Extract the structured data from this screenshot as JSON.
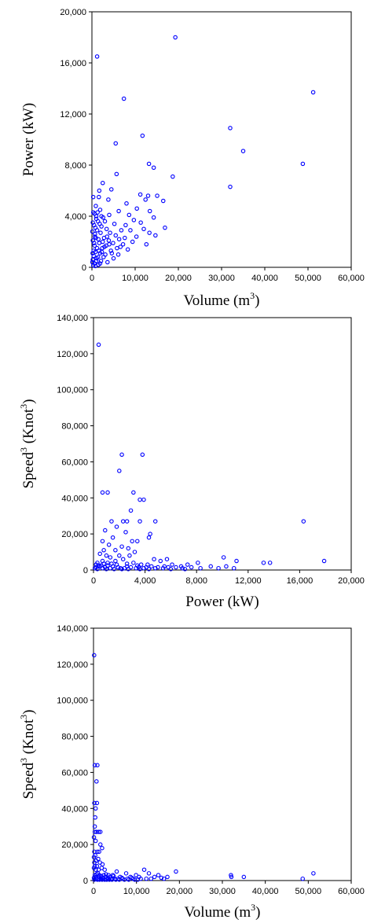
{
  "chart_data": [
    {
      "type": "scatter",
      "xlabel": "Volume (m3)",
      "xlabel_parts": {
        "base": "Volume (m",
        "sup": "3",
        "close": ")"
      },
      "ylabel": "Power (kW)",
      "xlim": [
        0,
        60000
      ],
      "ylim": [
        0,
        20000
      ],
      "xticks": [
        0,
        10000,
        20000,
        30000,
        40000,
        50000,
        60000
      ],
      "xtick_labels": [
        "0",
        "10,000",
        "20,000",
        "30,000",
        "40,000",
        "50,000",
        "60,000"
      ],
      "yticks": [
        0,
        4000,
        8000,
        12000,
        16000,
        20000
      ],
      "ytick_labels": [
        "0",
        "4,000",
        "8,000",
        "12,000",
        "16,000",
        "20,000"
      ],
      "grid": false,
      "marker_color": "#0000ff",
      "points": [
        [
          1200,
          16500
        ],
        [
          19300,
          18000
        ],
        [
          7400,
          13200
        ],
        [
          51200,
          13700
        ],
        [
          11700,
          10300
        ],
        [
          32000,
          10900
        ],
        [
          35000,
          9100
        ],
        [
          5500,
          9700
        ],
        [
          13200,
          8100
        ],
        [
          14300,
          7800
        ],
        [
          48800,
          8100
        ],
        [
          18700,
          7100
        ],
        [
          5700,
          7300
        ],
        [
          32000,
          6300
        ],
        [
          2500,
          6600
        ],
        [
          1700,
          6000
        ],
        [
          4500,
          6100
        ],
        [
          13000,
          5600
        ],
        [
          11200,
          5700
        ],
        [
          15100,
          5600
        ],
        [
          12400,
          5300
        ],
        [
          16500,
          5200
        ],
        [
          3800,
          5300
        ],
        [
          300,
          5500
        ],
        [
          1600,
          5500
        ],
        [
          8000,
          5000
        ],
        [
          900,
          4800
        ],
        [
          10400,
          4600
        ],
        [
          6200,
          4400
        ],
        [
          1900,
          4500
        ],
        [
          13400,
          4400
        ],
        [
          4000,
          4100
        ],
        [
          8600,
          4100
        ],
        [
          14300,
          3900
        ],
        [
          9700,
          3700
        ],
        [
          1000,
          3800
        ],
        [
          3000,
          3600
        ],
        [
          11300,
          3500
        ],
        [
          5200,
          3400
        ],
        [
          7800,
          3300
        ],
        [
          16900,
          3100
        ],
        [
          2200,
          3200
        ],
        [
          12000,
          3000
        ],
        [
          6800,
          2900
        ],
        [
          8900,
          2900
        ],
        [
          13300,
          2700
        ],
        [
          4200,
          2700
        ],
        [
          14700,
          2500
        ],
        [
          700,
          2600
        ],
        [
          10300,
          2400
        ],
        [
          3500,
          2400
        ],
        [
          6300,
          2200
        ],
        [
          1500,
          2200
        ],
        [
          9400,
          2000
        ],
        [
          2500,
          2000
        ],
        [
          4900,
          1900
        ],
        [
          12600,
          1800
        ],
        [
          7200,
          1800
        ],
        [
          500,
          1900
        ],
        [
          3300,
          1700
        ],
        [
          1200,
          1500
        ],
        [
          5800,
          1500
        ],
        [
          2400,
          1500
        ],
        [
          8300,
          1400
        ],
        [
          4400,
          1300
        ],
        [
          800,
          1200
        ],
        [
          1900,
          1100
        ],
        [
          3100,
          1000
        ],
        [
          6100,
          1000
        ],
        [
          400,
          900
        ],
        [
          1400,
          800
        ],
        [
          2700,
          800
        ],
        [
          5000,
          700
        ],
        [
          200,
          600
        ],
        [
          1000,
          500
        ],
        [
          2100,
          500
        ],
        [
          3600,
          400
        ],
        [
          600,
          300
        ],
        [
          1500,
          200
        ],
        [
          300,
          150
        ],
        [
          800,
          3100
        ],
        [
          1200,
          2900
        ],
        [
          2000,
          2700
        ],
        [
          2800,
          2300
        ],
        [
          3900,
          2100
        ],
        [
          1700,
          1900
        ],
        [
          600,
          1700
        ],
        [
          2300,
          1200
        ],
        [
          4600,
          1100
        ],
        [
          900,
          2300
        ],
        [
          200,
          2100
        ],
        [
          1800,
          3400
        ],
        [
          3400,
          3000
        ],
        [
          600,
          4200
        ],
        [
          2600,
          3900
        ],
        [
          1300,
          4300
        ],
        [
          200,
          3500
        ],
        [
          1000,
          4000
        ],
        [
          100,
          2800
        ],
        [
          1600,
          1300
        ],
        [
          2900,
          1600
        ],
        [
          400,
          1300
        ],
        [
          1100,
          700
        ],
        [
          100,
          400
        ],
        [
          5500,
          2500
        ],
        [
          7600,
          2300
        ],
        [
          6600,
          1600
        ],
        [
          4000,
          1800
        ],
        [
          700,
          2400
        ],
        [
          1400,
          3600
        ],
        [
          2200,
          4000
        ],
        [
          300,
          4300
        ],
        [
          800,
          100
        ],
        [
          1900,
          300
        ],
        [
          150,
          1100
        ],
        [
          500,
          3300
        ]
      ]
    },
    {
      "type": "scatter",
      "xlabel": "Power (kW)",
      "ylabel": "Speed3 (Knot3)",
      "ylabel_parts": {
        "a": "Speed",
        "sup1": "3",
        "b": " (Knot",
        "sup2": "3",
        "close": ")"
      },
      "xlim": [
        0,
        20000
      ],
      "ylim": [
        0,
        140000
      ],
      "xticks": [
        0,
        4000,
        8000,
        12000,
        16000,
        20000
      ],
      "xtick_labels": [
        "0",
        "4,000",
        "8,000",
        "12,000",
        "16,000",
        "20,000"
      ],
      "yticks": [
        0,
        20000,
        40000,
        60000,
        80000,
        100000,
        120000,
        140000
      ],
      "ytick_labels": [
        "0",
        "20,000",
        "40,000",
        "60,000",
        "80,000",
        "100,000",
        "120,000",
        "140,000"
      ],
      "grid": false,
      "marker_color": "#0000ff",
      "points": [
        [
          400,
          125000
        ],
        [
          2200,
          64000
        ],
        [
          3800,
          64000
        ],
        [
          2000,
          55000
        ],
        [
          700,
          43000
        ],
        [
          1100,
          43000
        ],
        [
          3100,
          43000
        ],
        [
          3600,
          39000
        ],
        [
          3900,
          39000
        ],
        [
          2900,
          33000
        ],
        [
          3600,
          27000
        ],
        [
          16300,
          27000
        ],
        [
          1400,
          27000
        ],
        [
          2300,
          27000
        ],
        [
          2600,
          27000
        ],
        [
          4800,
          27000
        ],
        [
          1800,
          24000
        ],
        [
          2500,
          21000
        ],
        [
          900,
          22000
        ],
        [
          4400,
          20000
        ],
        [
          4300,
          18000
        ],
        [
          1500,
          18000
        ],
        [
          3000,
          16000
        ],
        [
          3400,
          16000
        ],
        [
          700,
          16000
        ],
        [
          1200,
          14000
        ],
        [
          2200,
          13000
        ],
        [
          2700,
          12000
        ],
        [
          800,
          11000
        ],
        [
          1700,
          11000
        ],
        [
          3200,
          10000
        ],
        [
          500,
          9000
        ],
        [
          1000,
          8000
        ],
        [
          2000,
          8000
        ],
        [
          2800,
          8000
        ],
        [
          1300,
          7000
        ],
        [
          10100,
          7000
        ],
        [
          5700,
          6000
        ],
        [
          5200,
          5000
        ],
        [
          11100,
          5000
        ],
        [
          13200,
          4000
        ],
        [
          13700,
          4000
        ],
        [
          17900,
          5000
        ],
        [
          8100,
          4000
        ],
        [
          2300,
          6000
        ],
        [
          4700,
          6000
        ],
        [
          1700,
          5000
        ],
        [
          700,
          5000
        ],
        [
          300,
          4000
        ],
        [
          1100,
          4000
        ],
        [
          3100,
          4000
        ],
        [
          3700,
          3000
        ],
        [
          6100,
          3000
        ],
        [
          7300,
          3000
        ],
        [
          10300,
          2000
        ],
        [
          5500,
          2000
        ],
        [
          9100,
          2000
        ],
        [
          6800,
          2000
        ],
        [
          4500,
          2000
        ],
        [
          2600,
          2000
        ],
        [
          1500,
          2000
        ],
        [
          500,
          2000
        ],
        [
          200,
          1500
        ],
        [
          900,
          1500
        ],
        [
          1900,
          1500
        ],
        [
          2900,
          1500
        ],
        [
          3500,
          1500
        ],
        [
          4100,
          1500
        ],
        [
          5000,
          1500
        ],
        [
          5800,
          1500
        ],
        [
          6400,
          1500
        ],
        [
          7600,
          1500
        ],
        [
          8300,
          1000
        ],
        [
          9700,
          1000
        ],
        [
          10900,
          1000
        ],
        [
          100,
          1000
        ],
        [
          700,
          1000
        ],
        [
          1300,
          1000
        ],
        [
          2100,
          1000
        ],
        [
          2400,
          1000
        ],
        [
          3300,
          1000
        ],
        [
          3900,
          1000
        ],
        [
          4800,
          1000
        ],
        [
          5400,
          1000
        ],
        [
          6900,
          1000
        ],
        [
          300,
          500
        ],
        [
          1000,
          500
        ],
        [
          1600,
          500
        ],
        [
          2200,
          500
        ],
        [
          2700,
          500
        ],
        [
          3600,
          500
        ],
        [
          4300,
          500
        ],
        [
          6000,
          500
        ],
        [
          7100,
          500
        ],
        [
          400,
          2500
        ],
        [
          1100,
          2500
        ],
        [
          1800,
          3000
        ],
        [
          2600,
          3500
        ],
        [
          3400,
          2500
        ],
        [
          4200,
          3000
        ],
        [
          200,
          3000
        ],
        [
          800,
          3500
        ],
        [
          1400,
          3500
        ],
        [
          600,
          2500
        ]
      ]
    },
    {
      "type": "scatter",
      "xlabel": "Volume (m3)",
      "xlabel_parts": {
        "base": "Volume (m",
        "sup": "3",
        "close": ")"
      },
      "ylabel": "Speed3 (Knot3)",
      "ylabel_parts": {
        "a": "Speed",
        "sup1": "3",
        "b": " (Knot",
        "sup2": "3",
        "close": ")"
      },
      "xlim": [
        0,
        60000
      ],
      "ylim": [
        0,
        140000
      ],
      "xticks": [
        0,
        10000,
        20000,
        30000,
        40000,
        50000,
        60000
      ],
      "xtick_labels": [
        "0",
        "10,000",
        "20,000",
        "30,000",
        "40,000",
        "50,000",
        "60,000"
      ],
      "yticks": [
        0,
        20000,
        40000,
        60000,
        80000,
        100000,
        120000,
        140000
      ],
      "ytick_labels": [
        "0",
        "20,000",
        "40,000",
        "60,000",
        "80,000",
        "100,000",
        "120,000",
        "140,000"
      ],
      "grid": false,
      "marker_color": "#0000ff",
      "points": [
        [
          150,
          125000
        ],
        [
          300,
          64000
        ],
        [
          900,
          64000
        ],
        [
          700,
          55000
        ],
        [
          200,
          43000
        ],
        [
          800,
          43000
        ],
        [
          500,
          40000
        ],
        [
          400,
          35000
        ],
        [
          300,
          30000
        ],
        [
          300,
          27000
        ],
        [
          700,
          27000
        ],
        [
          1200,
          27000
        ],
        [
          1600,
          27000
        ],
        [
          100,
          24000
        ],
        [
          500,
          22000
        ],
        [
          1600,
          20000
        ],
        [
          2000,
          18000
        ],
        [
          200,
          16000
        ],
        [
          900,
          16000
        ],
        [
          1300,
          16000
        ],
        [
          400,
          14000
        ],
        [
          100,
          13000
        ],
        [
          1100,
          12000
        ],
        [
          600,
          11000
        ],
        [
          200,
          10000
        ],
        [
          1500,
          10000
        ],
        [
          2100,
          9000
        ],
        [
          300,
          8000
        ],
        [
          800,
          8000
        ],
        [
          100,
          7000
        ],
        [
          1900,
          7000
        ],
        [
          500,
          6000
        ],
        [
          1200,
          6000
        ],
        [
          2600,
          6000
        ],
        [
          5400,
          5000
        ],
        [
          11800,
          6000
        ],
        [
          12900,
          4000
        ],
        [
          19200,
          5000
        ],
        [
          32000,
          3000
        ],
        [
          32100,
          2000
        ],
        [
          35000,
          2000
        ],
        [
          48700,
          1000
        ],
        [
          51200,
          4000
        ],
        [
          7600,
          4000
        ],
        [
          4500,
          3000
        ],
        [
          9900,
          3000
        ],
        [
          15100,
          3000
        ],
        [
          17200,
          2000
        ],
        [
          14200,
          2000
        ],
        [
          10600,
          2000
        ],
        [
          8600,
          2000
        ],
        [
          6200,
          2000
        ],
        [
          3800,
          2000
        ],
        [
          2800,
          2000
        ],
        [
          12300,
          1000
        ],
        [
          16400,
          1000
        ],
        [
          13400,
          1000
        ],
        [
          11000,
          1000
        ],
        [
          9200,
          1000
        ],
        [
          7900,
          1000
        ],
        [
          6800,
          1000
        ],
        [
          5700,
          1000
        ],
        [
          4900,
          1000
        ],
        [
          4100,
          1000
        ],
        [
          3400,
          1000
        ],
        [
          2300,
          1000
        ],
        [
          1700,
          1000
        ],
        [
          1100,
          1000
        ],
        [
          600,
          1000
        ],
        [
          200,
          500
        ],
        [
          900,
          500
        ],
        [
          1400,
          500
        ],
        [
          2000,
          500
        ],
        [
          2600,
          500
        ],
        [
          3100,
          500
        ],
        [
          3700,
          500
        ],
        [
          4300,
          500
        ],
        [
          5200,
          500
        ],
        [
          6000,
          500
        ],
        [
          7200,
          500
        ],
        [
          8200,
          500
        ],
        [
          9600,
          500
        ],
        [
          10300,
          500
        ],
        [
          300,
          3000
        ],
        [
          700,
          3500
        ],
        [
          1000,
          4000
        ],
        [
          1400,
          3000
        ],
        [
          1800,
          2500
        ],
        [
          2400,
          3000
        ],
        [
          2900,
          3500
        ],
        [
          3500,
          3000
        ],
        [
          4700,
          2500
        ],
        [
          100,
          1500
        ],
        [
          500,
          2000
        ],
        [
          1300,
          2000
        ],
        [
          2200,
          1500
        ],
        [
          3300,
          1500
        ],
        [
          6600,
          1500
        ],
        [
          8900,
          1500
        ],
        [
          15800,
          1500
        ]
      ]
    }
  ]
}
